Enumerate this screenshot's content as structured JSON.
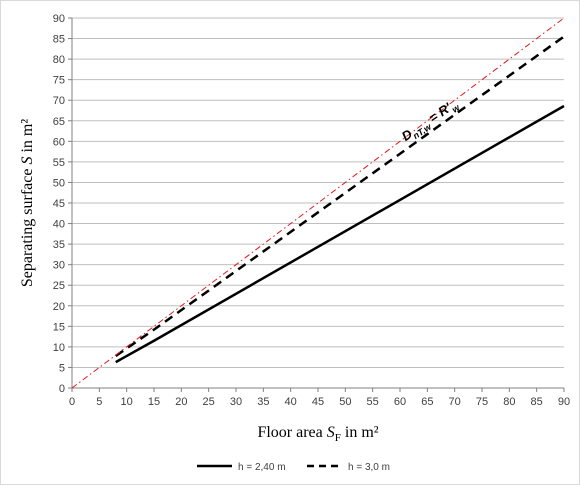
{
  "chart_data": {
    "type": "line",
    "xlabel": {
      "main": "Floor area ",
      "var": "S",
      "sub": "F",
      "unit": " in m²"
    },
    "ylabel": {
      "main": "Separating surface ",
      "var": "S",
      "unit": " in m²"
    },
    "xlim": [
      0,
      90
    ],
    "ylim": [
      0,
      90
    ],
    "xticks": [
      0,
      5,
      10,
      15,
      20,
      25,
      30,
      35,
      40,
      45,
      50,
      55,
      60,
      65,
      70,
      75,
      80,
      85,
      90
    ],
    "yticks": [
      0,
      5,
      10,
      15,
      20,
      25,
      30,
      35,
      40,
      45,
      50,
      55,
      60,
      65,
      70,
      75,
      80,
      85,
      90
    ],
    "grid": "horizontal",
    "legend_position": "bottom",
    "series": [
      {
        "name": "h = 2,40 m",
        "style": "solid",
        "color": "#000000",
        "x": [
          8,
          15,
          90
        ],
        "y": [
          6.3,
          11.5,
          68.6
        ]
      },
      {
        "name": "h = 3,0 m",
        "style": "dashed",
        "color": "#000000",
        "x": [
          8,
          15,
          90
        ],
        "y": [
          7.8,
          14.2,
          85.5
        ]
      },
      {
        "name": "",
        "style": "dashdot",
        "color": "#e31a1c",
        "x": [
          0,
          90
        ],
        "y": [
          0,
          90
        ]
      }
    ],
    "annotation": {
      "base": "D",
      "sub": "nT,w",
      "eq": " = R'",
      "sub2": "w",
      "x": 61,
      "y": 60
    }
  }
}
